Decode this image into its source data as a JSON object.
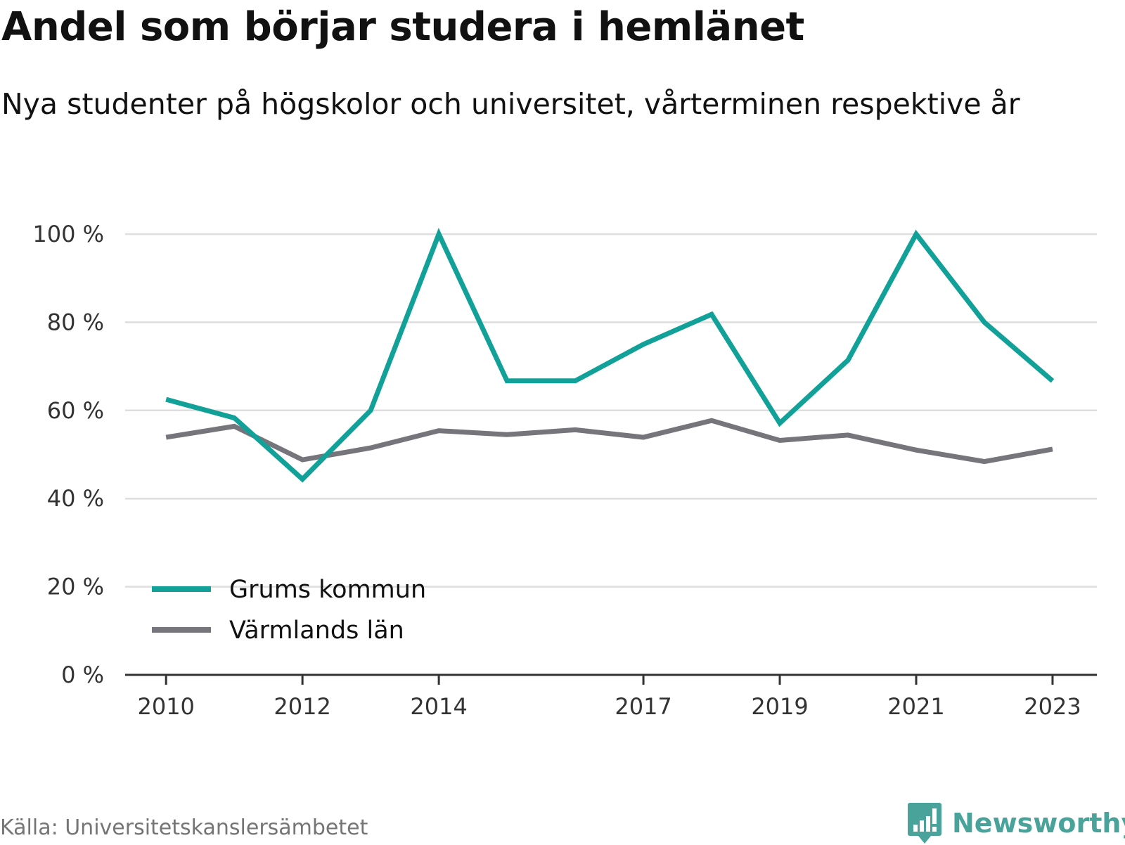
{
  "header": {
    "title": "Andel som börjar studera i hemlänet",
    "subtitle": "Nya studenter på högskolor och universitet, vårterminen respektive år"
  },
  "footer": {
    "source": "Källa: Universitetskanslersämbetet",
    "brand": "Newsworthy",
    "brand_icon": "bar-chart-speech-bubble-icon"
  },
  "colors": {
    "grums": "#12a199",
    "varmland": "#76757c",
    "grid": "#dedede",
    "axis": "#333333",
    "brand": "#4aa39b"
  },
  "chart_data": {
    "type": "line",
    "title": "Andel som börjar studera i hemlänet",
    "subtitle": "Nya studenter på högskolor och universitet, vårterminen respektive år",
    "x": [
      2010,
      2011,
      2012,
      2013,
      2014,
      2015,
      2016,
      2017,
      2018,
      2019,
      2020,
      2021,
      2022,
      2023
    ],
    "x_tick_labels": [
      "2010",
      "2012",
      "2014",
      "2017",
      "2019",
      "2021",
      "2023"
    ],
    "y_tick_labels": [
      "0 %",
      "20 %",
      "40 %",
      "60 %",
      "80 %",
      "100 %"
    ],
    "y_ticks": [
      0,
      20,
      40,
      60,
      80,
      100
    ],
    "ylim": [
      0,
      100
    ],
    "xlim": [
      2009.4,
      2023.65
    ],
    "grid": true,
    "legend_position": "bottom-left",
    "series": [
      {
        "name": "Grums kommun",
        "color": "#12a199",
        "values": [
          62.5,
          58.3,
          44.4,
          60.0,
          100.0,
          66.7,
          66.7,
          75.0,
          81.8,
          57.1,
          71.4,
          100.0,
          80.0,
          66.7
        ]
      },
      {
        "name": "Värmlands län",
        "color": "#76757c",
        "values": [
          53.9,
          56.4,
          48.8,
          51.5,
          55.4,
          54.5,
          55.6,
          53.9,
          57.7,
          53.2,
          54.4,
          51.0,
          48.4,
          51.2
        ]
      }
    ]
  }
}
